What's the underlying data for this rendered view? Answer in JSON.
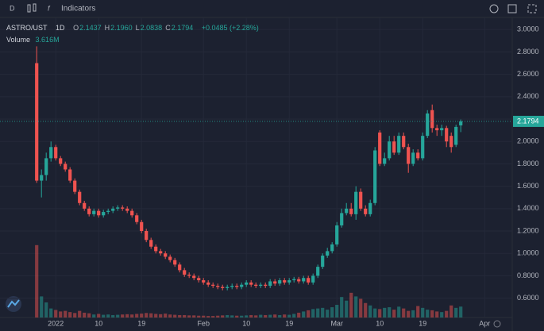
{
  "toolbar": {
    "interval_button": "D",
    "indicators": "Indicators"
  },
  "chart_data": {
    "type": "candlestick",
    "title": "ASTRO/UST",
    "interval": "1D",
    "ohlc_legend": [
      [
        "O",
        "2.1437"
      ],
      [
        "H",
        "2.1960"
      ],
      [
        "L",
        "2.0838"
      ],
      [
        "C",
        "2.1794"
      ]
    ],
    "change": "+0.0485 (+2.28%)",
    "volume_title": "Volume",
    "volume_value": "3.616M",
    "up_color": "#26a69a",
    "down_color": "#ef5350",
    "grid": true,
    "x": [
      -4,
      -3,
      -2,
      -1,
      0,
      1,
      2,
      3,
      4,
      5,
      6,
      7,
      8,
      9,
      10,
      11,
      12,
      13,
      14,
      15,
      16,
      17,
      18,
      19,
      20,
      21,
      22,
      23,
      24,
      25,
      26,
      27,
      28,
      29,
      30,
      31,
      32,
      33,
      34,
      35,
      36,
      37,
      38,
      39,
      40,
      41,
      42,
      43,
      44,
      45,
      46,
      47,
      48,
      49,
      50,
      51,
      52,
      53,
      54,
      55,
      56,
      57,
      58,
      59,
      60,
      61,
      62,
      63,
      64,
      65,
      66,
      67,
      68,
      69,
      70,
      71,
      72,
      73,
      74,
      75,
      76,
      77,
      78,
      79,
      80,
      81,
      82,
      83,
      84,
      85
    ],
    "open": [
      2.7,
      1.65,
      1.7,
      1.85,
      1.95,
      1.85,
      1.8,
      1.75,
      1.65,
      1.55,
      1.45,
      1.4,
      1.35,
      1.38,
      1.34,
      1.37,
      1.38,
      1.4,
      1.41,
      1.4,
      1.38,
      1.34,
      1.28,
      1.2,
      1.12,
      1.06,
      1.02,
      1.0,
      0.97,
      0.94,
      0.9,
      0.85,
      0.81,
      0.8,
      0.78,
      0.76,
      0.74,
      0.72,
      0.71,
      0.7,
      0.69,
      0.7,
      0.71,
      0.7,
      0.72,
      0.74,
      0.72,
      0.71,
      0.72,
      0.71,
      0.75,
      0.73,
      0.76,
      0.74,
      0.76,
      0.77,
      0.75,
      0.78,
      0.74,
      0.8,
      0.88,
      0.98,
      1.02,
      1.08,
      1.25,
      1.36,
      1.4,
      1.35,
      1.55,
      1.4,
      1.35,
      1.45,
      2.08,
      1.8,
      1.85,
      2.0,
      1.9,
      2.05,
      1.95,
      1.8,
      1.9,
      1.85,
      2.05,
      2.28,
      2.12,
      2.1,
      2.12,
      2.05,
      1.97,
      2.1437
    ],
    "high": [
      2.85,
      1.75,
      1.9,
      2.0,
      1.97,
      1.87,
      1.82,
      1.77,
      1.67,
      1.57,
      1.47,
      1.42,
      1.4,
      1.4,
      1.39,
      1.4,
      1.42,
      1.43,
      1.43,
      1.42,
      1.4,
      1.36,
      1.3,
      1.22,
      1.14,
      1.08,
      1.04,
      1.02,
      0.99,
      0.96,
      0.92,
      0.87,
      0.83,
      0.82,
      0.8,
      0.78,
      0.76,
      0.74,
      0.73,
      0.72,
      0.72,
      0.73,
      0.73,
      0.74,
      0.76,
      0.76,
      0.74,
      0.74,
      0.74,
      0.77,
      0.77,
      0.78,
      0.78,
      0.78,
      0.79,
      0.79,
      0.8,
      0.8,
      0.82,
      0.9,
      1.0,
      1.05,
      1.1,
      1.28,
      1.4,
      1.45,
      1.45,
      1.6,
      1.58,
      1.43,
      1.48,
      1.95,
      2.1,
      1.9,
      2.05,
      2.05,
      2.08,
      2.08,
      1.98,
      1.93,
      1.93,
      2.08,
      2.28,
      2.33,
      2.15,
      2.15,
      2.14,
      2.08,
      2.15,
      2.196
    ],
    "low": [
      1.63,
      1.5,
      1.65,
      1.82,
      1.83,
      1.78,
      1.73,
      1.63,
      1.53,
      1.43,
      1.38,
      1.33,
      1.33,
      1.32,
      1.32,
      1.35,
      1.36,
      1.38,
      1.38,
      1.36,
      1.32,
      1.26,
      1.18,
      1.1,
      1.04,
      1.0,
      0.98,
      0.95,
      0.92,
      0.88,
      0.83,
      0.79,
      0.78,
      0.76,
      0.74,
      0.72,
      0.7,
      0.69,
      0.68,
      0.67,
      0.67,
      0.68,
      0.68,
      0.68,
      0.7,
      0.7,
      0.69,
      0.69,
      0.69,
      0.69,
      0.71,
      0.71,
      0.72,
      0.72,
      0.74,
      0.73,
      0.73,
      0.72,
      0.72,
      0.78,
      0.86,
      0.96,
      1.0,
      1.06,
      1.23,
      1.34,
      1.33,
      1.3,
      1.38,
      1.33,
      1.33,
      1.43,
      1.78,
      1.78,
      1.83,
      1.88,
      1.88,
      1.93,
      1.72,
      1.78,
      1.83,
      1.83,
      2.03,
      2.08,
      2.05,
      2.05,
      1.95,
      1.9,
      1.95,
      2.0838
    ],
    "close": [
      1.65,
      1.7,
      1.85,
      1.95,
      1.85,
      1.8,
      1.75,
      1.65,
      1.55,
      1.45,
      1.4,
      1.35,
      1.38,
      1.34,
      1.37,
      1.38,
      1.4,
      1.41,
      1.4,
      1.38,
      1.34,
      1.28,
      1.2,
      1.12,
      1.06,
      1.02,
      1.0,
      0.97,
      0.94,
      0.9,
      0.85,
      0.81,
      0.8,
      0.78,
      0.76,
      0.74,
      0.72,
      0.71,
      0.7,
      0.69,
      0.7,
      0.71,
      0.7,
      0.72,
      0.74,
      0.72,
      0.71,
      0.72,
      0.71,
      0.75,
      0.73,
      0.76,
      0.74,
      0.76,
      0.77,
      0.75,
      0.78,
      0.74,
      0.8,
      0.88,
      0.98,
      1.02,
      1.08,
      1.25,
      1.36,
      1.4,
      1.35,
      1.55,
      1.4,
      1.35,
      1.45,
      1.92,
      1.8,
      1.85,
      2.0,
      1.9,
      2.05,
      1.95,
      1.8,
      1.9,
      1.85,
      2.05,
      2.25,
      2.12,
      2.1,
      2.12,
      2.0,
      1.95,
      2.13,
      2.1794
    ],
    "volume": [
      24,
      7,
      5,
      3,
      2.5,
      2,
      2.2,
      1.8,
      1.5,
      2.2,
      1.6,
      1.4,
      1,
      1.2,
      0.9,
      1,
      0.8,
      0.9,
      1,
      1.1,
      1,
      1.2,
      1.3,
      1.5,
      1.4,
      1.2,
      1.1,
      1.3,
      1,
      0.9,
      0.8,
      0.8,
      0.7,
      0.7,
      0.6,
      0.6,
      0.5,
      0.5,
      0.6,
      0.7,
      0.8,
      0.7,
      0.6,
      0.6,
      0.7,
      0.8,
      0.7,
      0.9,
      0.8,
      0.9,
      1,
      0.8,
      1,
      0.9,
      1.2,
      1.6,
      2,
      2.4,
      2.8,
      3,
      3.2,
      2.6,
      3.4,
      4.2,
      6.8,
      5.6,
      8.2,
      7,
      6.2,
      4.8,
      4,
      3,
      2.8,
      3.2,
      3.4,
      2.6,
      3.6,
      3,
      2.2,
      2.4,
      3.8,
      3.2,
      2.6,
      2.4,
      2,
      1.8,
      2.2,
      4,
      3.2,
      3.616
    ],
    "xlim": [
      -11.7,
      95.8
    ],
    "xticks": [
      {
        "value": 0,
        "label": "2022"
      },
      {
        "value": 9,
        "label": "10"
      },
      {
        "value": 18,
        "label": "19"
      },
      {
        "value": 31,
        "label": "Feb"
      },
      {
        "value": 40,
        "label": "10"
      },
      {
        "value": 49,
        "label": "19"
      },
      {
        "value": 59,
        "label": "Mar"
      },
      {
        "value": 68,
        "label": "10"
      },
      {
        "value": 77,
        "label": "19"
      },
      {
        "value": 90,
        "label": "Apr"
      }
    ],
    "ylim": [
      0.427,
      3.108
    ],
    "yticks": [
      {
        "value": 0.6,
        "label": "0.6000"
      },
      {
        "value": 0.8,
        "label": "0.8000"
      },
      {
        "value": 1,
        "label": "1.0000"
      },
      {
        "value": 1.2,
        "label": "1.2000"
      },
      {
        "value": 1.4,
        "label": "1.4000"
      },
      {
        "value": 1.6,
        "label": "1.6000"
      },
      {
        "value": 1.8,
        "label": "1.8000"
      },
      {
        "value": 2,
        "label": "2.0000"
      },
      {
        "value": 2.2,
        "label": "2.2000"
      },
      {
        "value": 2.4,
        "label": "2.4000"
      },
      {
        "value": 2.6,
        "label": "2.6000"
      },
      {
        "value": 2.8,
        "label": "2.8000"
      },
      {
        "value": 3,
        "label": "3.0000"
      }
    ]
  }
}
